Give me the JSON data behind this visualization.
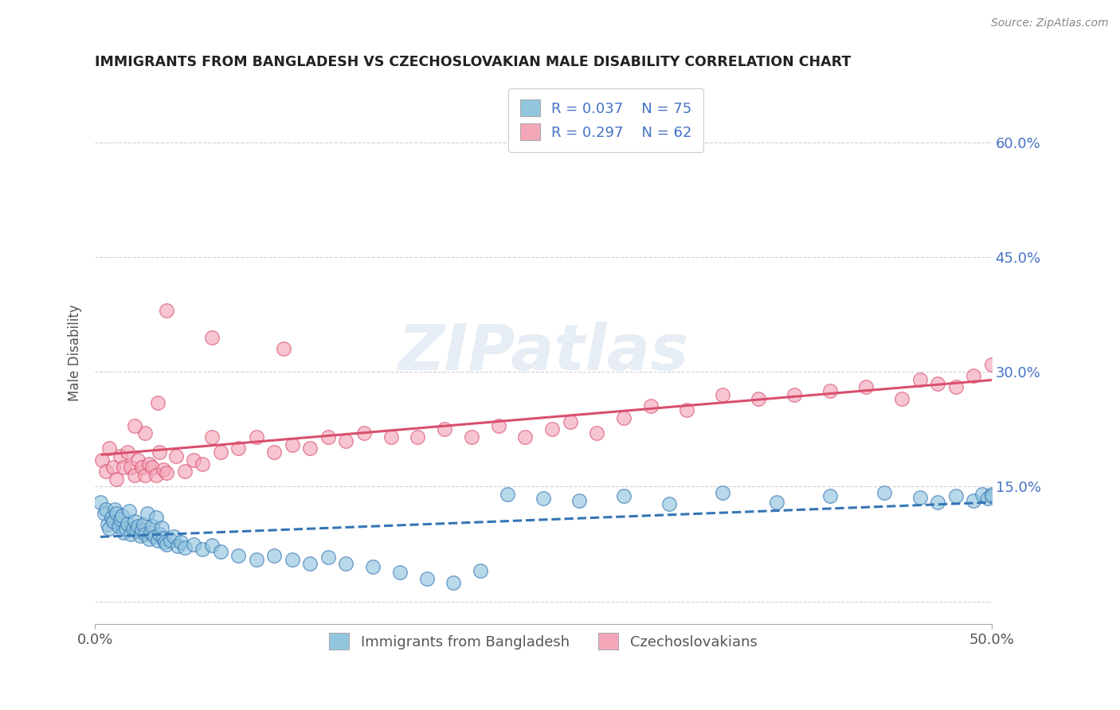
{
  "title": "IMMIGRANTS FROM BANGLADESH VS CZECHOSLOVAKIAN MALE DISABILITY CORRELATION CHART",
  "source_text": "Source: ZipAtlas.com",
  "ylabel": "Male Disability",
  "legend_labels": [
    "Immigrants from Bangladesh",
    "Czechoslovakians"
  ],
  "legend_R": [
    0.037,
    0.297
  ],
  "legend_N": [
    75,
    62
  ],
  "blue_color": "#92c5de",
  "pink_color": "#f4a7b9",
  "blue_line_color": "#3575b5",
  "pink_line_color": "#d94f6e",
  "axis_color": "#4472c4",
  "xmin": 0.0,
  "xmax": 0.5,
  "ymin": -0.03,
  "ymax": 0.68,
  "yticks": [
    0.0,
    0.15,
    0.3,
    0.45,
    0.6
  ],
  "ytick_labels": [
    "",
    "15.0%",
    "30.0%",
    "45.0%",
    "60.0%"
  ],
  "xtick_labels": [
    "0.0%",
    "50.0%"
  ],
  "xtick_pos": [
    0.0,
    0.5
  ],
  "blue_x": [
    0.003,
    0.005,
    0.006,
    0.007,
    0.008,
    0.009,
    0.01,
    0.011,
    0.012,
    0.013,
    0.014,
    0.015,
    0.016,
    0.017,
    0.018,
    0.019,
    0.02,
    0.021,
    0.022,
    0.023,
    0.024,
    0.025,
    0.026,
    0.027,
    0.028,
    0.029,
    0.03,
    0.031,
    0.032,
    0.033,
    0.034,
    0.035,
    0.036,
    0.037,
    0.038,
    0.039,
    0.04,
    0.042,
    0.044,
    0.046,
    0.048,
    0.05,
    0.055,
    0.06,
    0.065,
    0.07,
    0.08,
    0.09,
    0.1,
    0.11,
    0.12,
    0.13,
    0.14,
    0.155,
    0.17,
    0.185,
    0.2,
    0.215,
    0.23,
    0.25,
    0.27,
    0.295,
    0.32,
    0.35,
    0.38,
    0.41,
    0.44,
    0.46,
    0.47,
    0.48,
    0.49,
    0.495,
    0.498,
    0.5,
    0.5
  ],
  "blue_y": [
    0.13,
    0.115,
    0.12,
    0.1,
    0.095,
    0.11,
    0.105,
    0.12,
    0.115,
    0.098,
    0.108,
    0.112,
    0.09,
    0.095,
    0.102,
    0.118,
    0.088,
    0.095,
    0.105,
    0.092,
    0.098,
    0.086,
    0.093,
    0.1,
    0.088,
    0.115,
    0.082,
    0.09,
    0.098,
    0.085,
    0.11,
    0.08,
    0.088,
    0.096,
    0.083,
    0.078,
    0.075,
    0.08,
    0.085,
    0.072,
    0.078,
    0.07,
    0.075,
    0.068,
    0.073,
    0.065,
    0.06,
    0.055,
    0.06,
    0.055,
    0.05,
    0.058,
    0.05,
    0.045,
    0.038,
    0.03,
    0.025,
    0.04,
    0.14,
    0.135,
    0.132,
    0.138,
    0.128,
    0.142,
    0.13,
    0.138,
    0.142,
    0.136,
    0.13,
    0.138,
    0.132,
    0.14,
    0.135,
    0.14,
    0.138
  ],
  "pink_x": [
    0.004,
    0.006,
    0.008,
    0.01,
    0.012,
    0.014,
    0.016,
    0.018,
    0.02,
    0.022,
    0.024,
    0.026,
    0.028,
    0.03,
    0.032,
    0.034,
    0.036,
    0.038,
    0.04,
    0.045,
    0.05,
    0.055,
    0.06,
    0.065,
    0.07,
    0.08,
    0.09,
    0.1,
    0.11,
    0.12,
    0.13,
    0.14,
    0.15,
    0.165,
    0.18,
    0.195,
    0.21,
    0.225,
    0.24,
    0.255,
    0.265,
    0.28,
    0.295,
    0.31,
    0.33,
    0.35,
    0.37,
    0.39,
    0.41,
    0.43,
    0.45,
    0.46,
    0.47,
    0.48,
    0.49,
    0.5,
    0.105,
    0.065,
    0.04,
    0.035,
    0.028,
    0.022
  ],
  "pink_y": [
    0.185,
    0.17,
    0.2,
    0.175,
    0.16,
    0.19,
    0.175,
    0.195,
    0.175,
    0.165,
    0.185,
    0.175,
    0.165,
    0.18,
    0.175,
    0.165,
    0.195,
    0.172,
    0.168,
    0.19,
    0.17,
    0.185,
    0.18,
    0.215,
    0.195,
    0.2,
    0.215,
    0.195,
    0.205,
    0.2,
    0.215,
    0.21,
    0.22,
    0.215,
    0.215,
    0.225,
    0.215,
    0.23,
    0.215,
    0.225,
    0.235,
    0.22,
    0.24,
    0.255,
    0.25,
    0.27,
    0.265,
    0.27,
    0.275,
    0.28,
    0.265,
    0.29,
    0.285,
    0.28,
    0.295,
    0.31,
    0.33,
    0.345,
    0.38,
    0.26,
    0.22,
    0.23
  ],
  "watermark_text": "ZIPatlas",
  "background_color": "#ffffff",
  "grid_color": "#d0d0d0"
}
